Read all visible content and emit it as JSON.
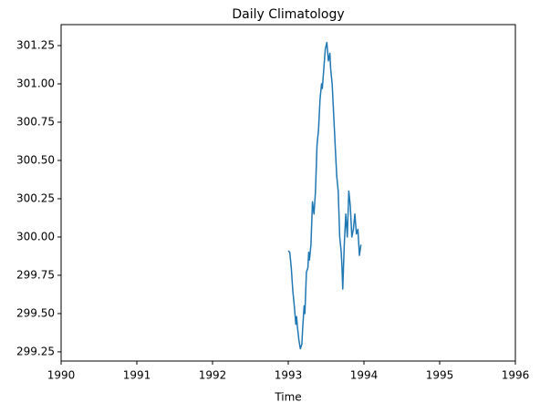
{
  "chart_data": {
    "type": "line",
    "title": "Daily Climatology",
    "x_label": "Time",
    "x": [
      1993.0,
      1993.02,
      1993.04,
      1993.06,
      1993.08,
      1993.1,
      1993.11,
      1993.12,
      1993.14,
      1993.15,
      1993.16,
      1993.18,
      1993.19,
      1993.21,
      1993.22,
      1993.24,
      1993.26,
      1993.27,
      1993.28,
      1993.3,
      1993.32,
      1993.34,
      1993.36,
      1993.38,
      1993.4,
      1993.42,
      1993.44,
      1993.45,
      1993.47,
      1993.49,
      1993.51,
      1993.53,
      1993.55,
      1993.56,
      1993.58,
      1993.6,
      1993.62,
      1993.64,
      1993.66,
      1993.68,
      1993.7,
      1993.71,
      1993.72,
      1993.74,
      1993.76,
      1993.78,
      1993.8,
      1993.82,
      1993.84,
      1993.86,
      1993.88,
      1993.9,
      1993.92,
      1993.94,
      1993.96
    ],
    "series": [
      {
        "color": "#1f77b4",
        "values": [
          299.91,
          299.9,
          299.8,
          299.65,
          299.55,
          299.43,
          299.48,
          299.42,
          299.33,
          299.3,
          299.27,
          299.3,
          299.4,
          299.55,
          299.5,
          299.77,
          299.8,
          299.9,
          299.85,
          299.95,
          300.23,
          300.15,
          300.3,
          300.6,
          300.7,
          300.9,
          301.0,
          300.97,
          301.1,
          301.23,
          301.27,
          301.15,
          301.2,
          301.1,
          301.0,
          300.8,
          300.6,
          300.4,
          300.3,
          300.0,
          299.9,
          299.8,
          299.66,
          299.95,
          300.15,
          300.0,
          300.3,
          300.2,
          300.0,
          300.05,
          300.15,
          300.02,
          300.05,
          299.88,
          299.95
        ]
      }
    ],
    "xlim": [
      1990,
      1996
    ],
    "xticks": [
      1990,
      1991,
      1992,
      1993,
      1994,
      1995,
      1996
    ],
    "ylim": [
      299.19,
      301.387
    ],
    "yticks": [
      299.25,
      {
        "value": 299.5,
        "label": "299.50"
      },
      299.75,
      {
        "value": 300,
        "label": "300.00"
      },
      300.25,
      {
        "value": 300.5,
        "label": "300.50"
      },
      300.75,
      {
        "value": 301,
        "label": "301.00"
      },
      301.25
    ]
  }
}
